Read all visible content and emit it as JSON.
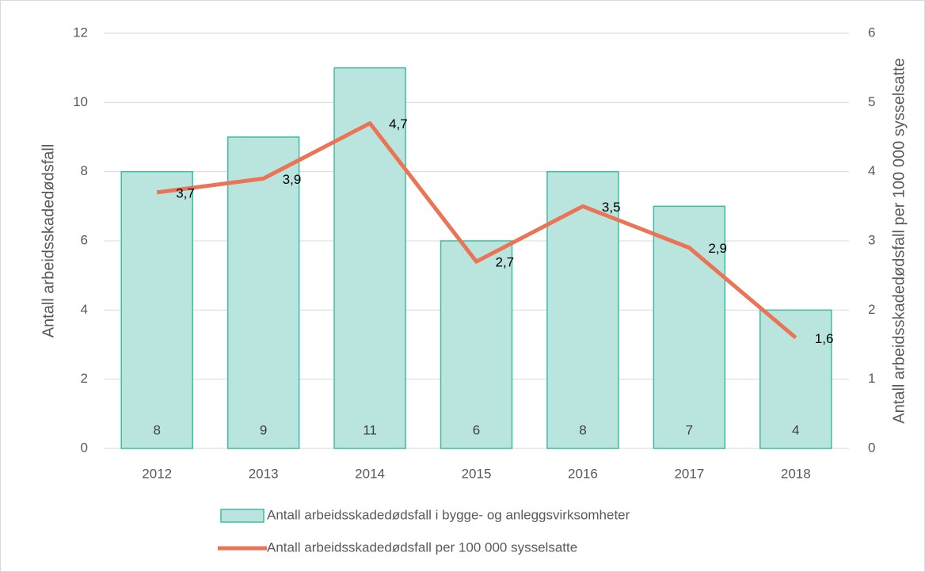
{
  "chart_data": {
    "type": "bar",
    "categories": [
      "2012",
      "2013",
      "2014",
      "2015",
      "2016",
      "2017",
      "2018"
    ],
    "ylabel": "Antall arbeidsskadedødsfall",
    "y2label": "Antall arbeidsskadedødsfall per 100 000 sysselsatte",
    "ylim": [
      0,
      12
    ],
    "yticks": [
      0,
      2,
      4,
      6,
      8,
      10,
      12
    ],
    "y2lim": [
      0,
      6
    ],
    "y2ticks": [
      0,
      1,
      2,
      3,
      4,
      5,
      6
    ],
    "grid": true,
    "legend": "bottom",
    "series": [
      {
        "name": "Antall arbeidsskadedødsfall i bygge- og anleggsvirksomheter",
        "type": "bar",
        "color": "#b9e5de",
        "edge_color": "#3dbca3",
        "values": [
          8,
          9,
          11,
          6,
          8,
          7,
          4
        ]
      },
      {
        "name": "Antall arbeidsskadedødsfall per 100 000 sysselsatte",
        "type": "line",
        "axis": "y2",
        "color": "#eb7356",
        "values": [
          3.7,
          3.9,
          4.7,
          2.7,
          3.5,
          2.9,
          1.6
        ],
        "value_labels": [
          "3,7",
          "3,9",
          "4,7",
          "2,7",
          "3,5",
          "2,9",
          "1,6"
        ]
      }
    ]
  }
}
